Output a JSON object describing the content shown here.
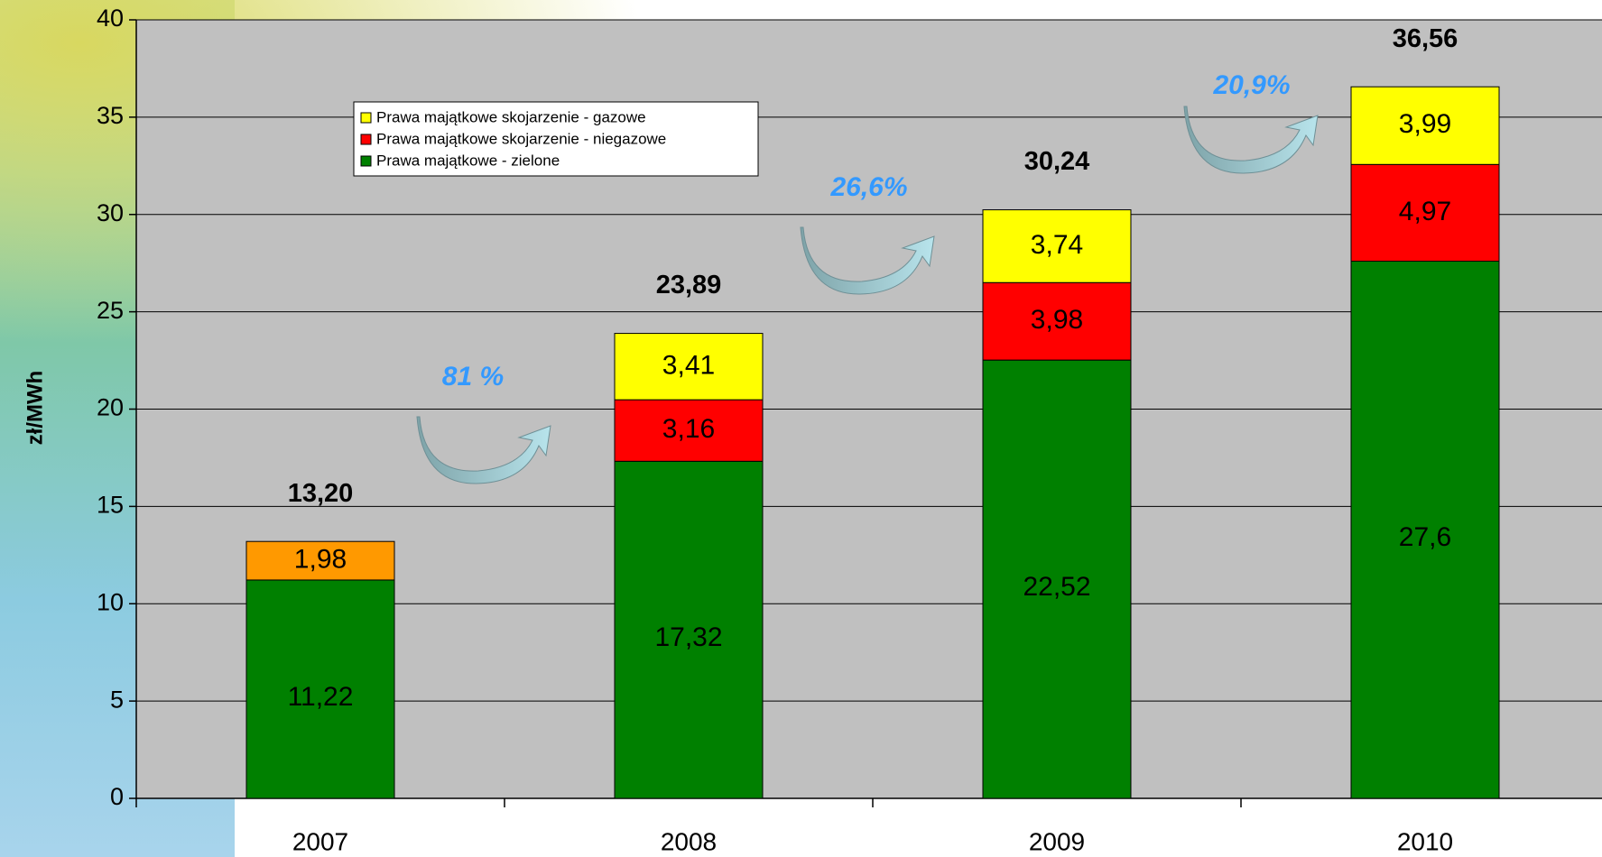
{
  "chart_data": {
    "type": "bar",
    "stacked": true,
    "y_label": "zł/MWh",
    "categories": [
      "2007",
      "2008",
      "2009",
      "2010"
    ],
    "series": [
      {
        "name": "Prawa majątkowe - zielone",
        "color": "#008000",
        "values": [
          11.22,
          17.32,
          22.52,
          27.6
        ],
        "value_labels": [
          "11,22",
          "17,32",
          "22,52",
          "27,6"
        ]
      },
      {
        "name": "Prawa majątkowe skojarzenie - niegazowe",
        "color": "#ff0000",
        "values": [
          null,
          3.16,
          3.98,
          4.97
        ],
        "value_labels": [
          null,
          "3,16",
          "3,98",
          "4,97"
        ]
      },
      {
        "name": "Prawa majątkowe skojarzenie - gazowe",
        "color": "#ffff00",
        "values": [
          null,
          3.41,
          3.74,
          3.99
        ],
        "value_labels": [
          null,
          "3,41",
          "3,74",
          "3,99"
        ]
      },
      {
        "color": "#ff9900",
        "values": [
          1.98,
          null,
          null,
          null
        ],
        "value_labels": [
          "1,98",
          null,
          null,
          null
        ]
      }
    ],
    "totals": {
      "values": [
        13.2,
        23.89,
        30.24,
        36.56
      ],
      "value_labels": [
        "13,20",
        "23,89",
        "30,24",
        "36,56"
      ]
    },
    "annotations": [
      "81 %",
      "26,6%",
      "20,9%"
    ],
    "ylim": [
      0,
      40
    ],
    "yticks": [
      0,
      5,
      10,
      15,
      20,
      25,
      30,
      35,
      40
    ],
    "grid": true,
    "legend": "upper left",
    "plot_background": "#c0c0c0"
  }
}
